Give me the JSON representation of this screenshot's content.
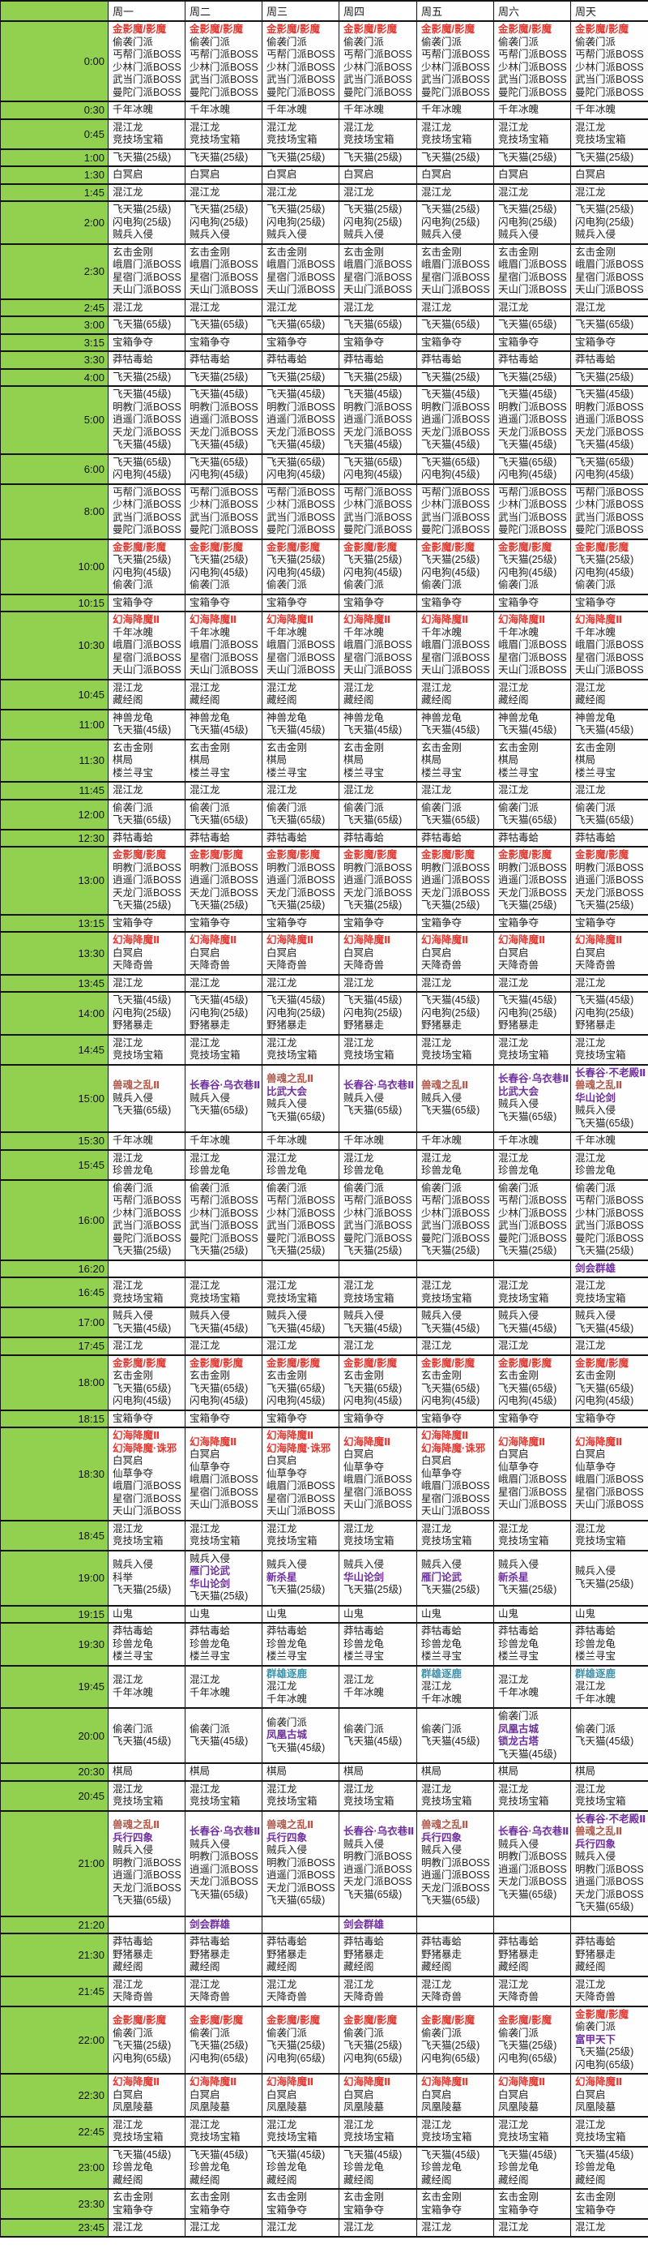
{
  "header": {
    "corner_label": "",
    "days": [
      "周一",
      "周二",
      "周三",
      "周四",
      "周五",
      "周六",
      "周天"
    ]
  },
  "colors": {
    "k": "#1f1f1f",
    "r": "#e23b33",
    "d": "#b0584a",
    "p": "#7030a0",
    "t": "#3d93ad",
    "time_column_bg": "#92d050",
    "grid_line": "#141414"
  },
  "rows": [
    {
      "time": "0:00",
      "all": [
        "r|金影魔/影魔",
        "偷袭门派",
        "丐帮门派BOSS",
        "少林门派BOSS",
        "武当门派BOSS",
        "曼陀门派BOSS"
      ]
    },
    {
      "time": "0:30",
      "all": [
        "千年冰魄"
      ]
    },
    {
      "time": "0:45",
      "all": [
        "混江龙",
        "竞技场宝箱"
      ]
    },
    {
      "time": "1:00",
      "all": [
        "飞天猫(25级)"
      ]
    },
    {
      "time": "1:30",
      "all": [
        "白冥启"
      ]
    },
    {
      "time": "1:45",
      "all": [
        "混江龙"
      ]
    },
    {
      "time": "2:00",
      "all": [
        "飞天猫(25级)",
        "闪电狗(25级)",
        "贼兵入侵"
      ]
    },
    {
      "time": "2:30",
      "all": [
        "玄击金刚",
        "峨眉门派BOSS",
        "星宿门派BOSS",
        "天山门派BOSS"
      ]
    },
    {
      "time": "2:45",
      "all": [
        "混江龙"
      ]
    },
    {
      "time": "3:00",
      "all": [
        "飞天猫(65级)"
      ]
    },
    {
      "time": "3:15",
      "all": [
        "宝箱争夺"
      ]
    },
    {
      "time": "3:30",
      "all": [
        "莽牯毒蛤"
      ]
    },
    {
      "time": "4:00",
      "all": [
        "飞天猫(25级)"
      ]
    },
    {
      "time": "5:00",
      "all": [
        "飞天猫(45级)",
        "明教门派BOSS",
        "逍遥门派BOSS",
        "天龙门派BOSS",
        "飞天猫(45级)"
      ]
    },
    {
      "time": "6:00",
      "all": [
        "飞天猫(65级)",
        "闪电狗(45级)"
      ]
    },
    {
      "time": "8:00",
      "all": [
        "丐帮门派BOSS",
        "少林门派BOSS",
        "武当门派BOSS",
        "曼陀门派BOSS"
      ]
    },
    {
      "time": "10:00",
      "all": [
        "r|金影魔/影魔",
        "飞天猫(25级)",
        "闪电狗(45级)",
        "偷袭门派"
      ]
    },
    {
      "time": "10:15",
      "all": [
        "宝箱争夺"
      ]
    },
    {
      "time": "10:30",
      "all": [
        "r|幻海降魔Ⅱ",
        "千年冰魄",
        "峨眉门派BOSS",
        "星宿门派BOSS",
        "天山门派BOSS"
      ]
    },
    {
      "time": "10:45",
      "all": [
        "混江龙",
        "藏经阁"
      ]
    },
    {
      "time": "11:00",
      "all": [
        "神兽龙龟",
        "飞天猫(45级)"
      ]
    },
    {
      "time": "11:30",
      "all": [
        "玄击金刚",
        "棋局",
        "楼兰寻宝"
      ]
    },
    {
      "time": "11:45",
      "all": [
        "混江龙"
      ]
    },
    {
      "time": "12:00",
      "all": [
        "偷袭门派",
        "飞天猫(65级)"
      ]
    },
    {
      "time": "12:30",
      "all": [
        "莽牯毒蛤"
      ]
    },
    {
      "time": "13:00",
      "all": [
        "r|金影魔/影魔",
        "明教门派BOSS",
        "逍遥门派BOSS",
        "天龙门派BOSS",
        "飞天猫(25级)"
      ]
    },
    {
      "time": "13:15",
      "all": [
        "宝箱争夺"
      ]
    },
    {
      "time": "13:30",
      "all": [
        "r|幻海降魔Ⅱ",
        "白冥启",
        "天降奇兽"
      ]
    },
    {
      "time": "13:45",
      "all": [
        "混江龙"
      ]
    },
    {
      "time": "14:00",
      "all": [
        "飞天猫(45级)",
        "闪电狗(25级)",
        "野猪暴走"
      ]
    },
    {
      "time": "14:45",
      "all": [
        "混江龙",
        "竞技场宝箱"
      ]
    },
    {
      "time": "15:00",
      "cells": [
        [
          "d|兽魂之乱Ⅱ",
          "贼兵入侵",
          "飞天猫(65级)"
        ],
        [
          "p|长春谷·乌衣巷Ⅱ",
          "贼兵入侵",
          "飞天猫(65级)"
        ],
        [
          "d|兽魂之乱Ⅱ",
          "p|比武大会",
          "贼兵入侵",
          "飞天猫(65级)"
        ],
        [
          "p|长春谷·乌衣巷Ⅱ",
          "贼兵入侵",
          "飞天猫(65级)"
        ],
        [
          "d|兽魂之乱Ⅱ",
          "贼兵入侵",
          "飞天猫(65级)"
        ],
        [
          "p|长春谷·乌衣巷Ⅱ",
          "p|比武大会",
          "贼兵入侵",
          "飞天猫(65级)"
        ],
        [
          "p|长春谷·不老殿Ⅱ",
          "d|兽魂之乱Ⅱ",
          "p|华山论剑",
          "贼兵入侵",
          "飞天猫(65级)"
        ]
      ]
    },
    {
      "time": "15:30",
      "all": [
        "千年冰魄"
      ]
    },
    {
      "time": "15:45",
      "all": [
        "混江龙",
        "珍兽龙龟"
      ]
    },
    {
      "time": "16:00",
      "all": [
        "偷袭门派",
        "丐帮门派BOSS",
        "少林门派BOSS",
        "武当门派BOSS",
        "曼陀门派BOSS",
        "飞天猫(25级)"
      ]
    },
    {
      "time": "16:20",
      "cells": [
        [],
        [],
        [],
        [],
        [],
        [],
        [
          "p|剑会群雄"
        ]
      ]
    },
    {
      "time": "16:45",
      "all": [
        "混江龙",
        "竞技场宝箱"
      ]
    },
    {
      "time": "17:00",
      "all": [
        "贼兵入侵",
        "飞天猫(45级)"
      ]
    },
    {
      "time": "17:45",
      "all": [
        "混江龙"
      ]
    },
    {
      "time": "18:00",
      "all": [
        "r|金影魔/影魔",
        "玄击金刚",
        "飞天猫(65级)",
        "闪电狗(45级)"
      ]
    },
    {
      "time": "18:15",
      "all": [
        "宝箱争夺"
      ]
    },
    {
      "time": "18:30",
      "cells": [
        [
          "r|幻海降魔Ⅱ",
          "r|幻海降魔·诛邪",
          "白冥启",
          "仙草争夺",
          "峨眉门派BOSS",
          "星宿门派BOSS",
          "天山门派BOSS"
        ],
        [
          "r|幻海降魔Ⅱ",
          "白冥启",
          "仙草争夺",
          "峨眉门派BOSS",
          "星宿门派BOSS",
          "天山门派BOSS"
        ],
        [
          "r|幻海降魔Ⅱ",
          "r|幻海降魔·诛邪",
          "白冥启",
          "仙草争夺",
          "峨眉门派BOSS",
          "星宿门派BOSS",
          "天山门派BOSS"
        ],
        [
          "r|幻海降魔Ⅱ",
          "白冥启",
          "仙草争夺",
          "峨眉门派BOSS",
          "星宿门派BOSS",
          "天山门派BOSS"
        ],
        [
          "r|幻海降魔Ⅱ",
          "r|幻海降魔·诛邪",
          "白冥启",
          "仙草争夺",
          "峨眉门派BOSS",
          "星宿门派BOSS",
          "天山门派BOSS"
        ],
        [
          "r|幻海降魔Ⅱ",
          "白冥启",
          "仙草争夺",
          "峨眉门派BOSS",
          "星宿门派BOSS",
          "天山门派BOSS"
        ],
        [
          "r|幻海降魔Ⅱ",
          "白冥启",
          "仙草争夺",
          "峨眉门派BOSS",
          "星宿门派BOSS",
          "天山门派BOSS"
        ]
      ]
    },
    {
      "time": "18:45",
      "all": [
        "混江龙",
        "竞技场宝箱"
      ]
    },
    {
      "time": "19:00",
      "cells": [
        [
          "贼兵入侵",
          "科举",
          "飞天猫(25级)"
        ],
        [
          "贼兵入侵",
          "p|雁门论武",
          "p|华山论剑",
          "飞天猫(25级)"
        ],
        [
          "贼兵入侵",
          "p|新杀星",
          "飞天猫(25级)"
        ],
        [
          "贼兵入侵",
          "p|华山论剑",
          "飞天猫(25级)"
        ],
        [
          "贼兵入侵",
          "p|雁门论武",
          "飞天猫(25级)"
        ],
        [
          "贼兵入侵",
          "p|新杀星",
          "飞天猫(25级)"
        ],
        [
          "贼兵入侵",
          "飞天猫(25级)"
        ]
      ]
    },
    {
      "time": "19:15",
      "all": [
        "山鬼"
      ]
    },
    {
      "time": "19:30",
      "all": [
        "莽牯毒蛤",
        "珍兽龙龟",
        "楼兰寻宝"
      ]
    },
    {
      "time": "19:45",
      "cells": [
        [
          "混江龙",
          "千年冰魄"
        ],
        [
          "混江龙",
          "千年冰魄"
        ],
        [
          "t|群雄逐鹿",
          "混江龙",
          "千年冰魄"
        ],
        [
          "混江龙",
          "千年冰魄"
        ],
        [
          "t|群雄逐鹿",
          "混江龙",
          "千年冰魄"
        ],
        [
          "混江龙",
          "千年冰魄"
        ],
        [
          "t|群雄逐鹿",
          "混江龙",
          "千年冰魄"
        ]
      ]
    },
    {
      "time": "20:00",
      "cells": [
        [
          "偷袭门派",
          "飞天猫(45级)"
        ],
        [
          "偷袭门派",
          "飞天猫(45级)"
        ],
        [
          "偷袭门派",
          "p|凤凰古城",
          "飞天猫(45级)"
        ],
        [
          "偷袭门派",
          "飞天猫(45级)"
        ],
        [
          "偷袭门派",
          "飞天猫(45级)"
        ],
        [
          "偷袭门派",
          "p|凤凰古城",
          "p|锁龙古塔",
          "飞天猫(45级)"
        ],
        [
          "偷袭门派",
          "飞天猫(45级)"
        ]
      ]
    },
    {
      "time": "20:30",
      "all": [
        "棋局"
      ]
    },
    {
      "time": "20:45",
      "all": [
        "混江龙",
        "竞技场宝箱"
      ]
    },
    {
      "time": "21:00",
      "cells": [
        [
          "d|兽魂之乱Ⅱ",
          "p|兵行四象",
          "贼兵入侵",
          "明教门派BOSS",
          "逍遥门派BOSS",
          "天龙门派BOSS",
          "飞天猫(65级)"
        ],
        [
          "p|长春谷·乌衣巷Ⅱ",
          "贼兵入侵",
          "明教门派BOSS",
          "逍遥门派BOSS",
          "天龙门派BOSS",
          "飞天猫(65级)"
        ],
        [
          "d|兽魂之乱Ⅱ",
          "p|兵行四象",
          "贼兵入侵",
          "明教门派BOSS",
          "逍遥门派BOSS",
          "天龙门派BOSS",
          "飞天猫(65级)"
        ],
        [
          "p|长春谷·乌衣巷Ⅱ",
          "贼兵入侵",
          "明教门派BOSS",
          "逍遥门派BOSS",
          "天龙门派BOSS",
          "飞天猫(65级)"
        ],
        [
          "d|兽魂之乱Ⅱ",
          "p|兵行四象",
          "贼兵入侵",
          "明教门派BOSS",
          "逍遥门派BOSS",
          "天龙门派BOSS",
          "飞天猫(65级)"
        ],
        [
          "p|长春谷·乌衣巷Ⅱ",
          "贼兵入侵",
          "明教门派BOSS",
          "逍遥门派BOSS",
          "天龙门派BOSS",
          "飞天猫(65级)"
        ],
        [
          "p|长春谷·不老殿Ⅱ",
          "d|兽魂之乱Ⅱ",
          "p|兵行四象",
          "贼兵入侵",
          "明教门派BOSS",
          "逍遥门派BOSS",
          "天龙门派BOSS",
          "飞天猫(65级)"
        ]
      ]
    },
    {
      "time": "21:20",
      "cells": [
        [],
        [
          "p|剑会群雄"
        ],
        [],
        [
          "p|剑会群雄"
        ],
        [],
        [],
        []
      ]
    },
    {
      "time": "21:30",
      "all": [
        "莽牯毒蛤",
        "野猪暴走",
        "藏经阁"
      ]
    },
    {
      "time": "21:45",
      "all": [
        "混江龙",
        "天降奇兽"
      ]
    },
    {
      "time": "22:00",
      "cells": [
        [
          "r|金影魔/影魔",
          "偷袭门派",
          "飞天猫(25级)",
          "闪电狗(65级)"
        ],
        [
          "r|金影魔/影魔",
          "偷袭门派",
          "飞天猫(25级)",
          "闪电狗(65级)"
        ],
        [
          "r|金影魔/影魔",
          "偷袭门派",
          "飞天猫(25级)",
          "闪电狗(65级)"
        ],
        [
          "r|金影魔/影魔",
          "偷袭门派",
          "飞天猫(25级)",
          "闪电狗(65级)"
        ],
        [
          "r|金影魔/影魔",
          "偷袭门派",
          "飞天猫(25级)",
          "闪电狗(65级)"
        ],
        [
          "r|金影魔/影魔",
          "偷袭门派",
          "飞天猫(25级)",
          "闪电狗(65级)"
        ],
        [
          "r|金影魔/影魔",
          "偷袭门派",
          "p|富甲天下",
          "飞天猫(25级)",
          "闪电狗(65级)"
        ]
      ]
    },
    {
      "time": "22:30",
      "all": [
        "r|幻海降魔Ⅱ",
        "白冥启",
        "凤凰陵墓"
      ]
    },
    {
      "time": "22:45",
      "all": [
        "混江龙",
        "竞技场宝箱"
      ]
    },
    {
      "time": "23:00",
      "all": [
        "飞天猫(45级)",
        "珍兽龙龟",
        "藏经阁"
      ]
    },
    {
      "time": "23:30",
      "all": [
        "玄击金刚",
        "宝箱争夺"
      ]
    },
    {
      "time": "23:45",
      "all": [
        "混江龙"
      ]
    }
  ]
}
